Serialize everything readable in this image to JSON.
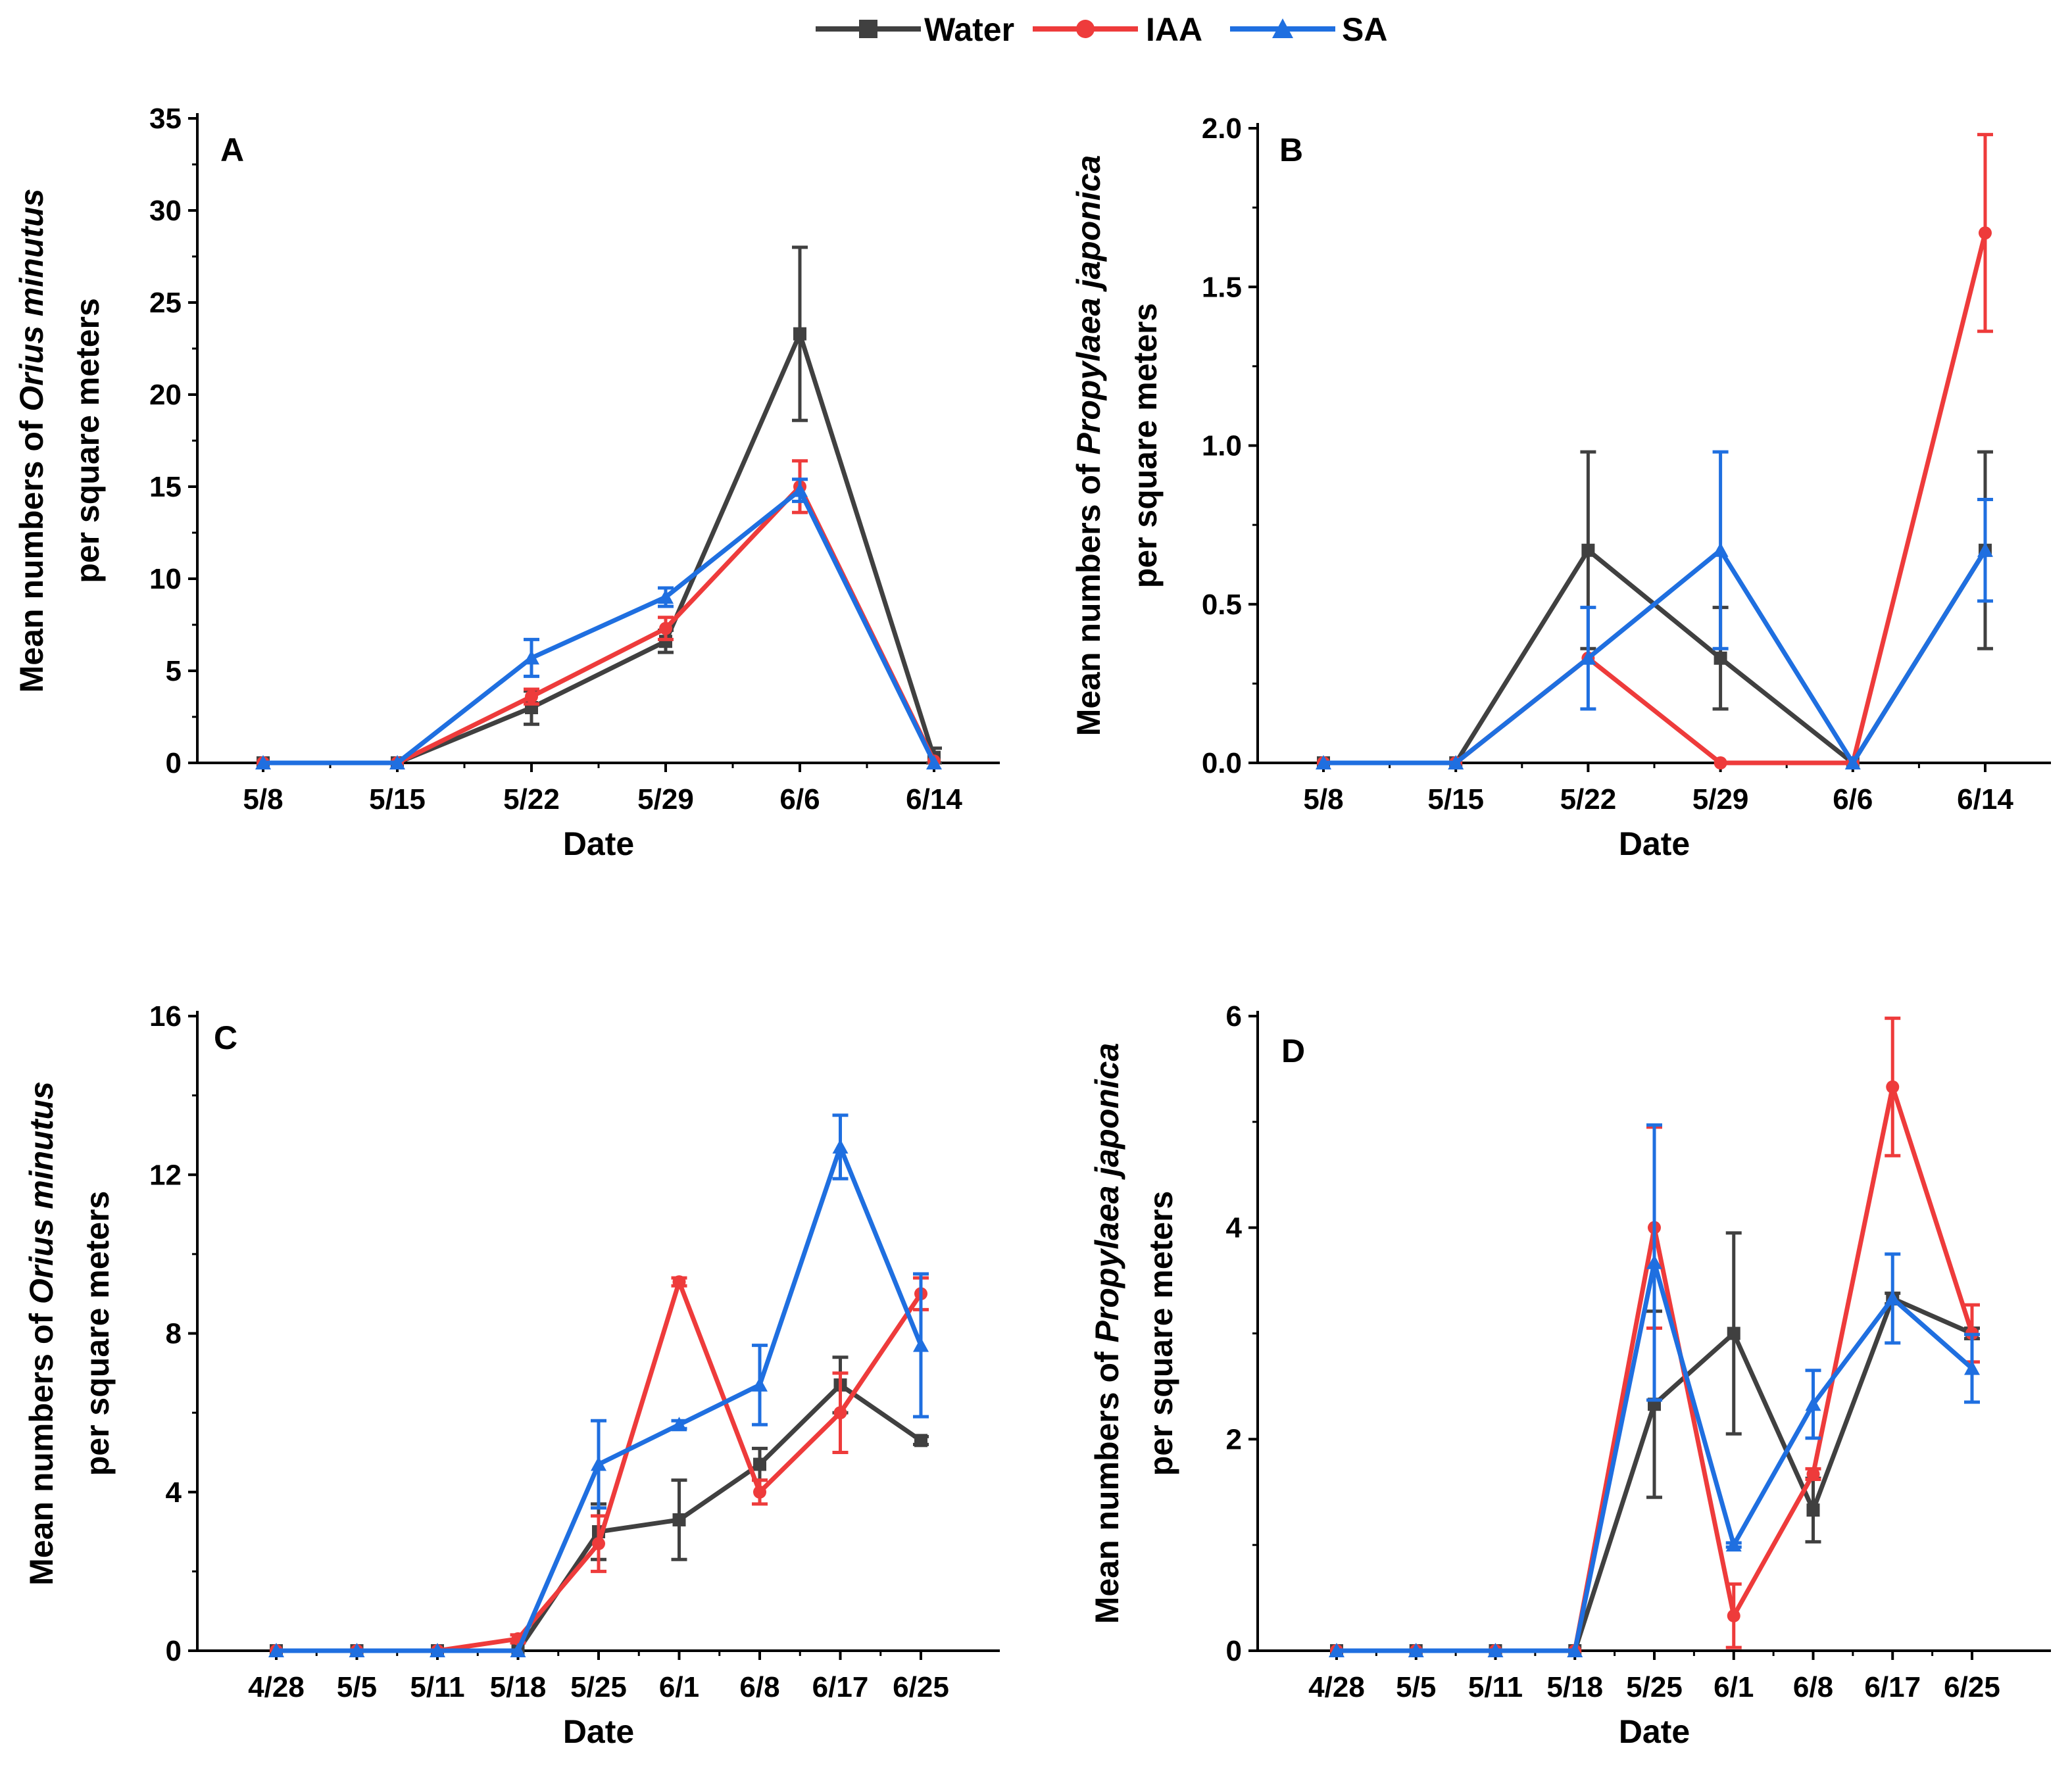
{
  "legend": {
    "items": [
      {
        "name": "Water",
        "color": "#404040",
        "marker": "square"
      },
      {
        "name": "IAA",
        "color": "#ee3b3b",
        "marker": "circle"
      },
      {
        "name": "SA",
        "color": "#1f6fe0",
        "marker": "triangle"
      }
    ]
  },
  "chart_data": [
    {
      "panel": "A",
      "type": "line",
      "xlabel": "Date",
      "ylabel_lines": [
        [
          {
            "text": "Mean numbers of ",
            "italic": false
          },
          {
            "text": "Orius minutus",
            "italic": true
          }
        ],
        [
          {
            "text": "per square meters",
            "italic": false
          }
        ]
      ],
      "categories": [
        "5/8",
        "5/15",
        "5/22",
        "5/29",
        "6/6",
        "6/14"
      ],
      "ylim": [
        0,
        35
      ],
      "yticks": [
        0,
        5,
        10,
        15,
        20,
        25,
        30,
        35
      ],
      "ytick_labels": [
        "0",
        "5",
        "10",
        "15",
        "20",
        "25",
        "30",
        "35"
      ],
      "series": [
        {
          "name": "Water",
          "values": [
            0,
            0,
            3.0,
            6.6,
            23.3,
            0.3
          ],
          "errors": [
            0,
            0,
            0.9,
            0.6,
            4.7,
            0.5
          ]
        },
        {
          "name": "IAA",
          "values": [
            0,
            0,
            3.6,
            7.3,
            15.0,
            0.1
          ],
          "errors": [
            0,
            0,
            0.4,
            0.6,
            1.4,
            0
          ]
        },
        {
          "name": "SA",
          "values": [
            0,
            0,
            5.7,
            9.0,
            14.8,
            0
          ],
          "errors": [
            0,
            0,
            1.0,
            0.5,
            0.6,
            0
          ]
        }
      ]
    },
    {
      "panel": "B",
      "type": "line",
      "xlabel": "Date",
      "ylabel_lines": [
        [
          {
            "text": "Mean numbers of ",
            "italic": false
          },
          {
            "text": "Propylaea japonica",
            "italic": true
          }
        ],
        [
          {
            "text": "per square meters",
            "italic": false
          }
        ]
      ],
      "categories": [
        "5/8",
        "5/15",
        "5/22",
        "5/29",
        "6/6",
        "6/14"
      ],
      "ylim": [
        0,
        2.0
      ],
      "yticks": [
        0,
        0.5,
        1.0,
        1.5,
        2.0
      ],
      "ytick_labels": [
        "0.0",
        "0.5",
        "1.0",
        "1.5",
        "2.0"
      ],
      "series": [
        {
          "name": "Water",
          "values": [
            0,
            0,
            0.67,
            0.33,
            0,
            0.67
          ],
          "errors": [
            0,
            0,
            0.31,
            0.16,
            0,
            0.31
          ]
        },
        {
          "name": "IAA",
          "values": [
            0,
            0,
            0.33,
            0,
            0,
            1.67
          ],
          "errors": [
            0,
            0,
            0,
            0,
            0,
            0.31
          ]
        },
        {
          "name": "SA",
          "values": [
            0,
            0,
            0.33,
            0.67,
            0,
            0.67
          ],
          "errors": [
            0,
            0,
            0.16,
            0.31,
            0,
            0.16
          ]
        }
      ]
    },
    {
      "panel": "C",
      "type": "line",
      "xlabel": "Date",
      "ylabel_lines": [
        [
          {
            "text": "Mean numbers of ",
            "italic": false
          },
          {
            "text": "Orius minutus",
            "italic": true
          }
        ],
        [
          {
            "text": "per square meters",
            "italic": false
          }
        ]
      ],
      "categories": [
        "4/28",
        "5/5",
        "5/11",
        "5/18",
        "5/25",
        "6/1",
        "6/8",
        "6/17",
        "6/25"
      ],
      "ylim": [
        0,
        16
      ],
      "yticks": [
        0,
        4,
        8,
        12,
        16
      ],
      "ytick_labels": [
        "0",
        "4",
        "8",
        "12",
        "16"
      ],
      "series": [
        {
          "name": "Water",
          "values": [
            0,
            0,
            0,
            0,
            3.0,
            3.3,
            4.7,
            6.7,
            5.3
          ],
          "errors": [
            0,
            0,
            0,
            0,
            0.7,
            1.0,
            0.4,
            0.7,
            0.1
          ]
        },
        {
          "name": "IAA",
          "values": [
            0,
            0,
            0,
            0.3,
            2.7,
            9.3,
            4.0,
            6.0,
            9.0
          ],
          "errors": [
            0,
            0,
            0,
            0.1,
            0.7,
            0.1,
            0.3,
            1.0,
            0.4
          ]
        },
        {
          "name": "SA",
          "values": [
            0,
            0,
            0,
            0,
            4.7,
            5.7,
            6.7,
            12.7,
            7.7
          ],
          "errors": [
            0,
            0,
            0,
            0,
            1.1,
            0.1,
            1.0,
            0.8,
            1.8
          ]
        }
      ]
    },
    {
      "panel": "D",
      "type": "line",
      "xlabel": "Date",
      "ylabel_lines": [
        [
          {
            "text": "Mean numbers of ",
            "italic": false
          },
          {
            "text": "Propylaea japonica",
            "italic": true
          }
        ],
        [
          {
            "text": "per square meters",
            "italic": false
          }
        ]
      ],
      "categories": [
        "4/28",
        "5/5",
        "5/11",
        "5/18",
        "5/25",
        "6/1",
        "6/8",
        "6/17",
        "6/25"
      ],
      "ylim": [
        0,
        6
      ],
      "yticks": [
        0,
        2,
        4,
        6
      ],
      "ytick_labels": [
        "0",
        "2",
        "4",
        "6"
      ],
      "series": [
        {
          "name": "Water",
          "values": [
            0,
            0,
            0,
            0,
            2.33,
            3.0,
            1.33,
            3.33,
            3.0
          ],
          "errors": [
            0,
            0,
            0,
            0,
            0.88,
            0.95,
            0.3,
            0.05,
            0.05
          ]
        },
        {
          "name": "IAA",
          "values": [
            0,
            0,
            0,
            0,
            4.0,
            0.33,
            1.67,
            5.33,
            3.0
          ],
          "errors": [
            0,
            0,
            0,
            0,
            0.95,
            0.3,
            0.05,
            0.65,
            0.27
          ]
        },
        {
          "name": "SA",
          "values": [
            0,
            0,
            0,
            0,
            3.67,
            1.0,
            2.33,
            3.33,
            2.67
          ],
          "errors": [
            0,
            0,
            0,
            0,
            1.3,
            0.02,
            0.32,
            0.42,
            0.32
          ]
        }
      ]
    }
  ]
}
